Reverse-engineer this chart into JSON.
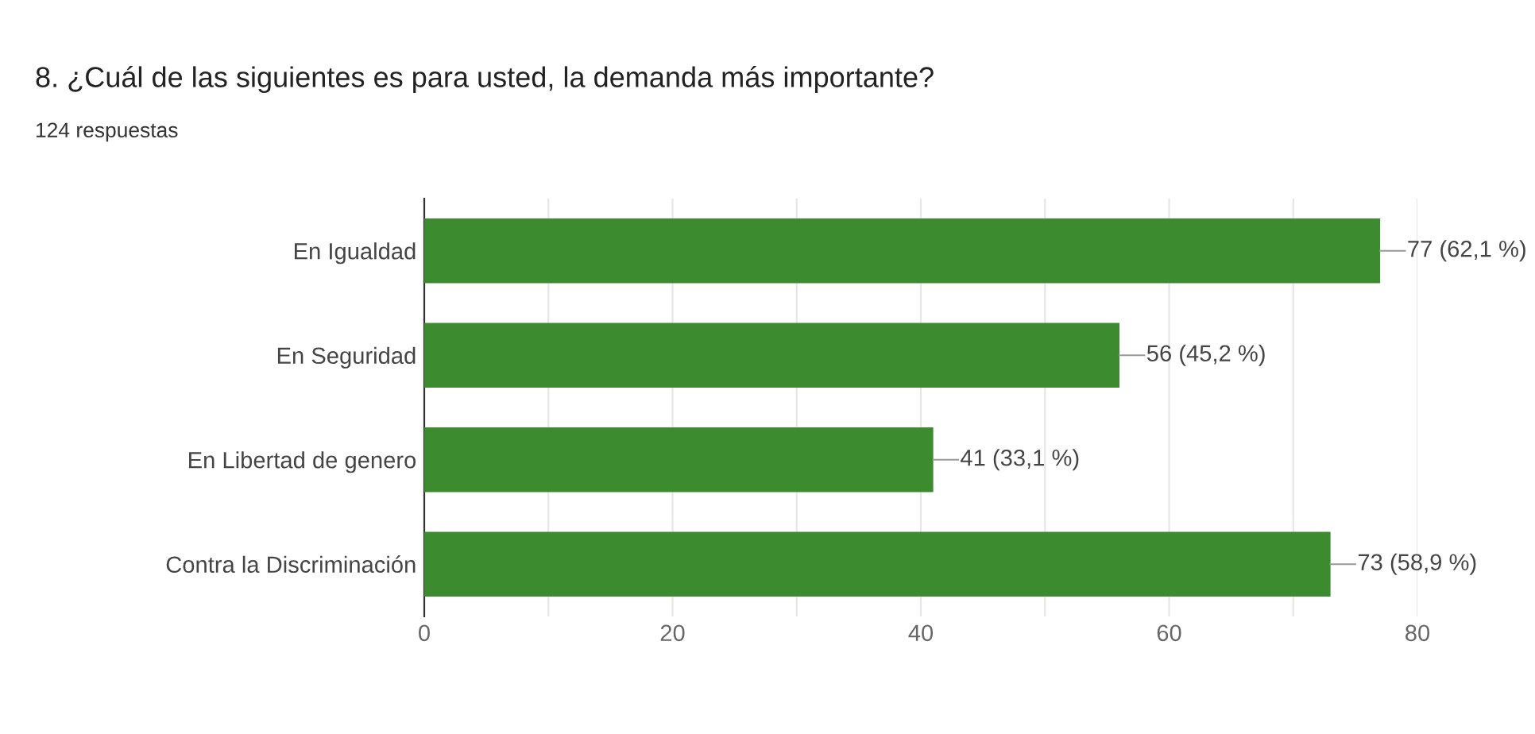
{
  "chart_data": {
    "type": "bar",
    "orientation": "horizontal",
    "title": "8. ¿Cuál de las siguientes es para usted, la demanda más importante?",
    "subtitle": "124 respuestas",
    "categories": [
      "En Igualdad",
      "En Seguridad",
      "En Libertad de genero",
      "Contra la Discriminación"
    ],
    "values": [
      77,
      56,
      41,
      73
    ],
    "value_labels": [
      "77 (62,1 %)",
      "56 (45,2 %)",
      "41 (33,1 %)",
      "73 (58,9 %)"
    ],
    "color": "#3d8b2f",
    "xlim": [
      0,
      80
    ],
    "xticks": [
      0,
      {
        "value": 10,
        "label": null
      },
      20,
      {
        "value": 30,
        "label": null
      },
      40,
      {
        "value": 50,
        "label": null
      },
      60,
      {
        "value": 70,
        "label": null
      },
      80
    ],
    "grid": "x",
    "legend": false
  }
}
